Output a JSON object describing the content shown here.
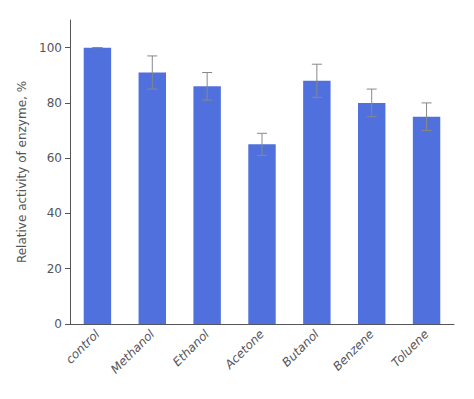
{
  "chart_data": {
    "type": "bar",
    "categories": [
      "control",
      "Methanol",
      "Ethanol",
      "Acetone",
      "Butanol",
      "Benzene",
      "Toluene"
    ],
    "values": [
      100,
      91,
      86,
      65,
      88,
      80,
      75
    ],
    "errors": [
      0,
      6,
      5,
      4,
      6,
      5,
      5
    ],
    "ylabel": "Relative activity of enzyme, %",
    "ylim": [
      0,
      110
    ],
    "yticks": [
      0,
      20,
      40,
      60,
      80,
      100
    ],
    "grid": false
  }
}
